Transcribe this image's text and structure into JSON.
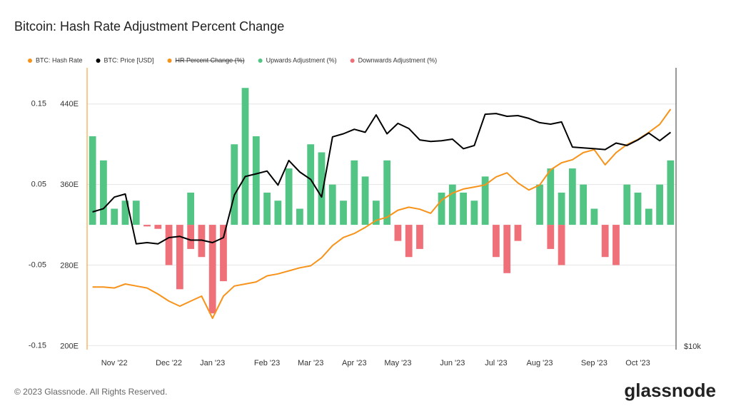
{
  "title": "Bitcoin: Hash Rate Adjustment Percent Change",
  "footer": {
    "copyright": "© 2023 Glassnode. All Rights Reserved.",
    "brand": "glassnode"
  },
  "chart_data": {
    "type": "bar-line",
    "categories": [
      null,
      null,
      "Nov '22",
      null,
      null,
      null,
      null,
      "Dec '22",
      null,
      null,
      null,
      "Jan '23",
      null,
      null,
      null,
      null,
      "Feb '23",
      null,
      null,
      null,
      "Mar '23",
      null,
      null,
      null,
      "Apr '23",
      null,
      null,
      null,
      "May '23",
      null,
      null,
      null,
      null,
      "Jun '23",
      null,
      null,
      null,
      "Jul '23",
      null,
      null,
      null,
      "Aug '23",
      null,
      null,
      null,
      null,
      "Sep '23",
      null,
      null,
      null,
      "Oct '23",
      null,
      null,
      null
    ],
    "ylim": [
      -0.155,
      0.195
    ],
    "yticks": [
      0.15,
      0.05,
      -0.05,
      -0.15
    ],
    "y2lim": [
      197,
      476
    ],
    "y2ticks": [
      {
        "value": 440,
        "label": "440E"
      },
      {
        "value": 360,
        "label": "360E"
      },
      {
        "value": 280,
        "label": "280E"
      },
      {
        "value": 200,
        "label": "200E"
      }
    ],
    "y3lim": [
      10000,
      38000
    ],
    "y3scale": "log",
    "y3ticks": [
      {
        "value": 10000,
        "label": "$10k"
      }
    ],
    "grid": true,
    "series": [
      {
        "name": "BTC: Hash Rate",
        "type": "line",
        "axis": "y2",
        "color": "#f7931a",
        "values": [
          259,
          259,
          258,
          262,
          260,
          258,
          252,
          245,
          240,
          245,
          250,
          228,
          250,
          260,
          262,
          264,
          270,
          272,
          275,
          278,
          280,
          288,
          300,
          308,
          312,
          318,
          325,
          328,
          335,
          338,
          336,
          332,
          345,
          352,
          356,
          358,
          360,
          368,
          372,
          362,
          355,
          360,
          375,
          382,
          385,
          392,
          395,
          380,
          392,
          400,
          405,
          412,
          420,
          435
        ]
      },
      {
        "name": "BTC: Price [USD]",
        "type": "line",
        "axis": "y3",
        "color": "#000000",
        "values": [
          19200,
          19500,
          20600,
          20900,
          16500,
          16600,
          16500,
          17000,
          17100,
          16800,
          16800,
          16600,
          17000,
          20800,
          22700,
          23000,
          23300,
          21800,
          24500,
          23200,
          22400,
          20600,
          27400,
          27800,
          28400,
          28000,
          30400,
          27800,
          29200,
          28500,
          27000,
          26800,
          26900,
          27100,
          25900,
          26300,
          30500,
          30600,
          30200,
          30300,
          29900,
          29300,
          29100,
          29400,
          26100,
          26000,
          25900,
          25800,
          26600,
          26300,
          27000,
          27900,
          26900,
          28000
        ]
      },
      {
        "name": "HR Percent Change (%)",
        "type": "line",
        "color": "#f7931a",
        "hidden": true
      },
      {
        "name": "Upwards Adjustment (%)",
        "type": "bar",
        "axis": "y",
        "color": "#52c585",
        "values": [
          0.11,
          0.08,
          0.02,
          0.03,
          0.03,
          0,
          0,
          0,
          0,
          0.04,
          0,
          0,
          0,
          0.1,
          0.17,
          0.11,
          0.04,
          0.03,
          0.07,
          0.02,
          0.1,
          0.09,
          0.05,
          0.03,
          0.08,
          0.06,
          0.03,
          0.08,
          0,
          0,
          0,
          0,
          0.04,
          0.05,
          0.04,
          0.03,
          0.06,
          0,
          0,
          0,
          0,
          0.05,
          0.07,
          0.04,
          0.07,
          0.05,
          0.02,
          0,
          0,
          0.05,
          0.04,
          0.02,
          0.05,
          0.08
        ]
      },
      {
        "name": "Downwards Adjustment (%)",
        "type": "bar",
        "axis": "y",
        "color": "#f0707a",
        "values": [
          0,
          0,
          0,
          0,
          0,
          -0.002,
          -0.005,
          -0.05,
          -0.08,
          -0.03,
          -0.04,
          -0.11,
          -0.07,
          0,
          0,
          0,
          0,
          0,
          0,
          0,
          0,
          0,
          0,
          0,
          0,
          0,
          0,
          0,
          -0.02,
          -0.04,
          -0.03,
          0,
          0,
          0,
          0,
          0,
          0,
          -0.04,
          -0.06,
          -0.02,
          0,
          0,
          -0.03,
          -0.05,
          0,
          0,
          0,
          -0.04,
          -0.05,
          0,
          0,
          0,
          0,
          0
        ]
      }
    ]
  }
}
